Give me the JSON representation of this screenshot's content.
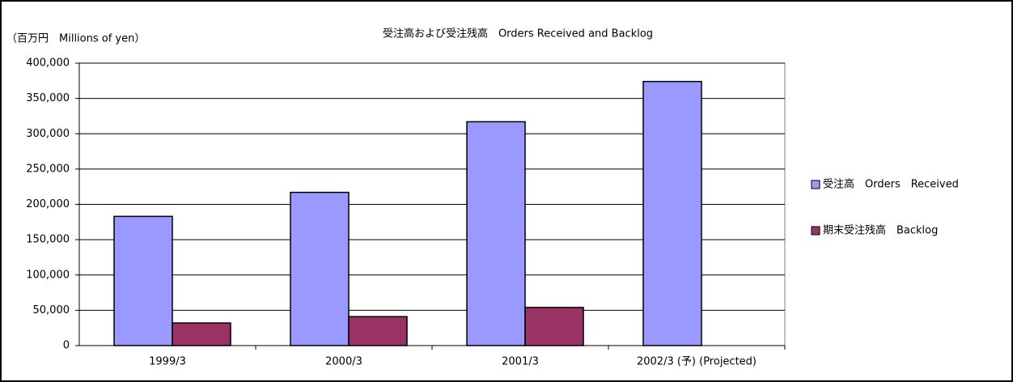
{
  "chart_data": {
    "type": "bar",
    "title": "受注高および受注残高　Orders Received and Backlog",
    "y_label": "（百万円　Millions of yen）",
    "categories": [
      "1999/3",
      "2000/3",
      "2001/3",
      "2002/3 (予) (Projected)"
    ],
    "series": [
      {
        "name": "受注高　Orders　Received",
        "color": "#9999ff",
        "values": [
          183000,
          217000,
          317000,
          374000
        ]
      },
      {
        "name": "期末受注残高　Backlog",
        "color": "#993366",
        "values": [
          32000,
          41000,
          54000,
          null
        ]
      }
    ],
    "ylim": [
      0,
      400000
    ],
    "yticks": [
      0,
      {
        "value": 50000,
        "label": "50,000"
      },
      {
        "value": 100000,
        "label": "100,000"
      },
      {
        "value": 150000,
        "label": "150,000"
      },
      {
        "value": 200000,
        "label": "200,000"
      },
      {
        "value": 250000,
        "label": "250,000"
      },
      {
        "value": 300000,
        "label": "300,000"
      },
      {
        "value": 350000,
        "label": "350,000"
      },
      {
        "value": 400000,
        "label": "400,000"
      }
    ],
    "grid": true,
    "legend": "right"
  }
}
